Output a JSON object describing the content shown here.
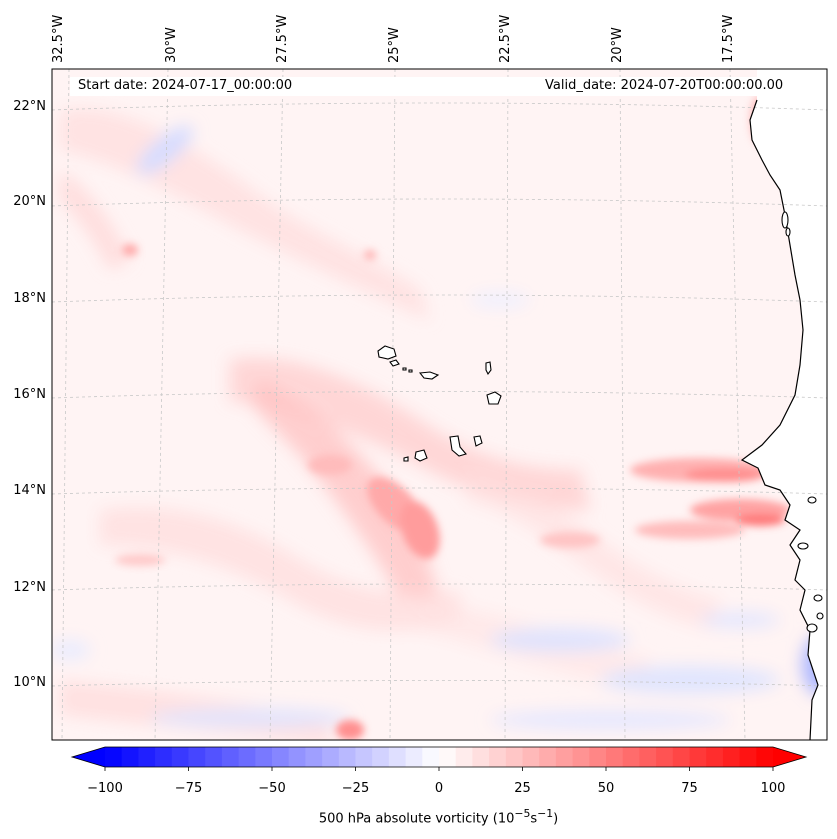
{
  "map": {
    "start_date": "Start date: 2024-07-17_00:00:00",
    "valid_date": "Valid_date: 2024-07-20T00:00:00.00",
    "lon_labels": [
      "32.5°W",
      "30°W",
      "27.5°W",
      "25°W",
      "22.5°W",
      "20°W",
      "17.5°W"
    ],
    "lat_labels": [
      "22°N",
      "20°N",
      "18°N",
      "16°N",
      "14°N",
      "12°N",
      "10°N"
    ],
    "land_fill": "#ffffff",
    "coast_color": "#000000",
    "grid_color": "#c8c8c8"
  },
  "colorbar": {
    "ticks": [
      "−100",
      "−75",
      "−50",
      "−25",
      "0",
      "25",
      "50",
      "75",
      "100"
    ],
    "label_prefix": "500 hPa absolute vorticity (10",
    "label_exp1": "−5",
    "label_mid": "s",
    "label_exp2": "−1",
    "label_suffix": ")",
    "colors": {
      "min": "#0000ff",
      "mid": "#ffffff",
      "max": "#ff0000"
    }
  }
}
